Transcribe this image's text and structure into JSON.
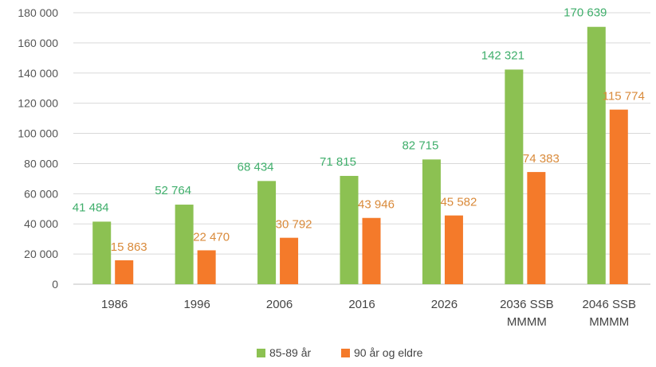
{
  "chart_data": {
    "type": "bar",
    "categories": [
      [
        "1986"
      ],
      [
        "1996"
      ],
      [
        "2006"
      ],
      [
        "2016"
      ],
      [
        "2026"
      ],
      [
        "2036 SSB",
        "MMMM"
      ],
      [
        "2046 SSB",
        "MMMM"
      ]
    ],
    "series": [
      {
        "name": "85-89 år",
        "color": "#8cc152",
        "label_color": "#3fae6b",
        "values": [
          41484,
          52764,
          68434,
          71815,
          82715,
          142321,
          170639
        ],
        "labels": [
          "41 484",
          "52 764",
          "68 434",
          "71 815",
          "82 715",
          "142 321",
          "170 639"
        ]
      },
      {
        "name": "90 år og eldre",
        "color": "#f47a2a",
        "label_color": "#d98a3a",
        "values": [
          15863,
          22470,
          30792,
          43946,
          45582,
          74383,
          115774
        ],
        "labels": [
          "15 863",
          "22 470",
          "30 792",
          "43 946",
          "45 582",
          "74 383",
          "115 774"
        ]
      }
    ],
    "ylim": [
      0,
      180000
    ],
    "yticks": [
      0,
      20000,
      40000,
      60000,
      80000,
      100000,
      120000,
      140000,
      160000,
      180000
    ],
    "ytick_labels": [
      "0",
      "20 000",
      "40 000",
      "60 000",
      "80 000",
      "100 000",
      "120 000",
      "140 000",
      "160 000",
      "180 000"
    ],
    "grid": true,
    "legend_position": "bottom-center",
    "title": "",
    "xlabel": "",
    "ylabel": ""
  }
}
